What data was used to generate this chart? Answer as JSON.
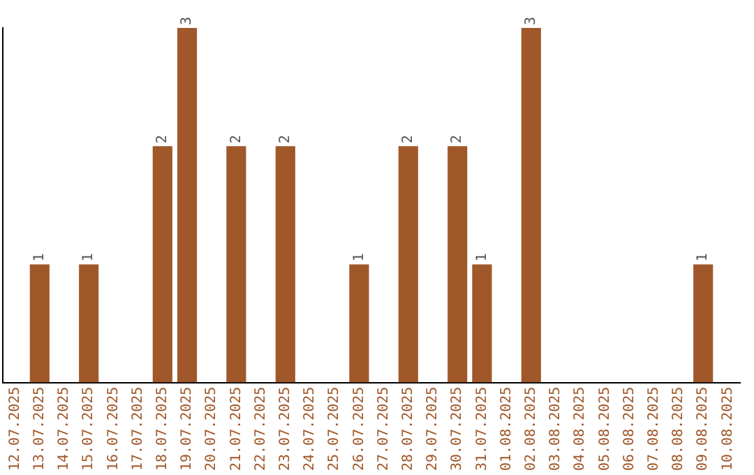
{
  "chart_data": {
    "type": "bar",
    "categories": [
      "12.07.2025",
      "13.07.2025",
      "14.07.2025",
      "15.07.2025",
      "16.07.2025",
      "17.07.2025",
      "18.07.2025",
      "19.07.2025",
      "20.07.2025",
      "21.07.2025",
      "22.07.2025",
      "23.07.2025",
      "24.07.2025",
      "25.07.2025",
      "26.07.2025",
      "27.07.2025",
      "28.07.2025",
      "29.07.2025",
      "30.07.2025",
      "31.07.2025",
      "01.08.2025",
      "02.08.2025",
      "03.08.2025",
      "04.08.2025",
      "05.08.2025",
      "06.08.2025",
      "07.08.2025",
      "08.08.2025",
      "09.08.2025",
      "10.08.2025"
    ],
    "values": [
      0,
      1,
      0,
      1,
      0,
      0,
      2,
      3,
      0,
      2,
      0,
      2,
      0,
      0,
      1,
      0,
      2,
      0,
      2,
      1,
      0,
      3,
      0,
      0,
      0,
      0,
      0,
      0,
      1,
      0
    ],
    "value_labels": [
      null,
      "1",
      null,
      "1",
      null,
      null,
      "2",
      "3",
      null,
      "2",
      null,
      "2",
      null,
      null,
      "1",
      null,
      "2",
      null,
      "2",
      "1",
      null,
      "3",
      null,
      null,
      null,
      null,
      null,
      null,
      "1",
      null
    ],
    "color": "#a0582a",
    "grid": false,
    "legend": false,
    "tick_labels": "x"
  }
}
